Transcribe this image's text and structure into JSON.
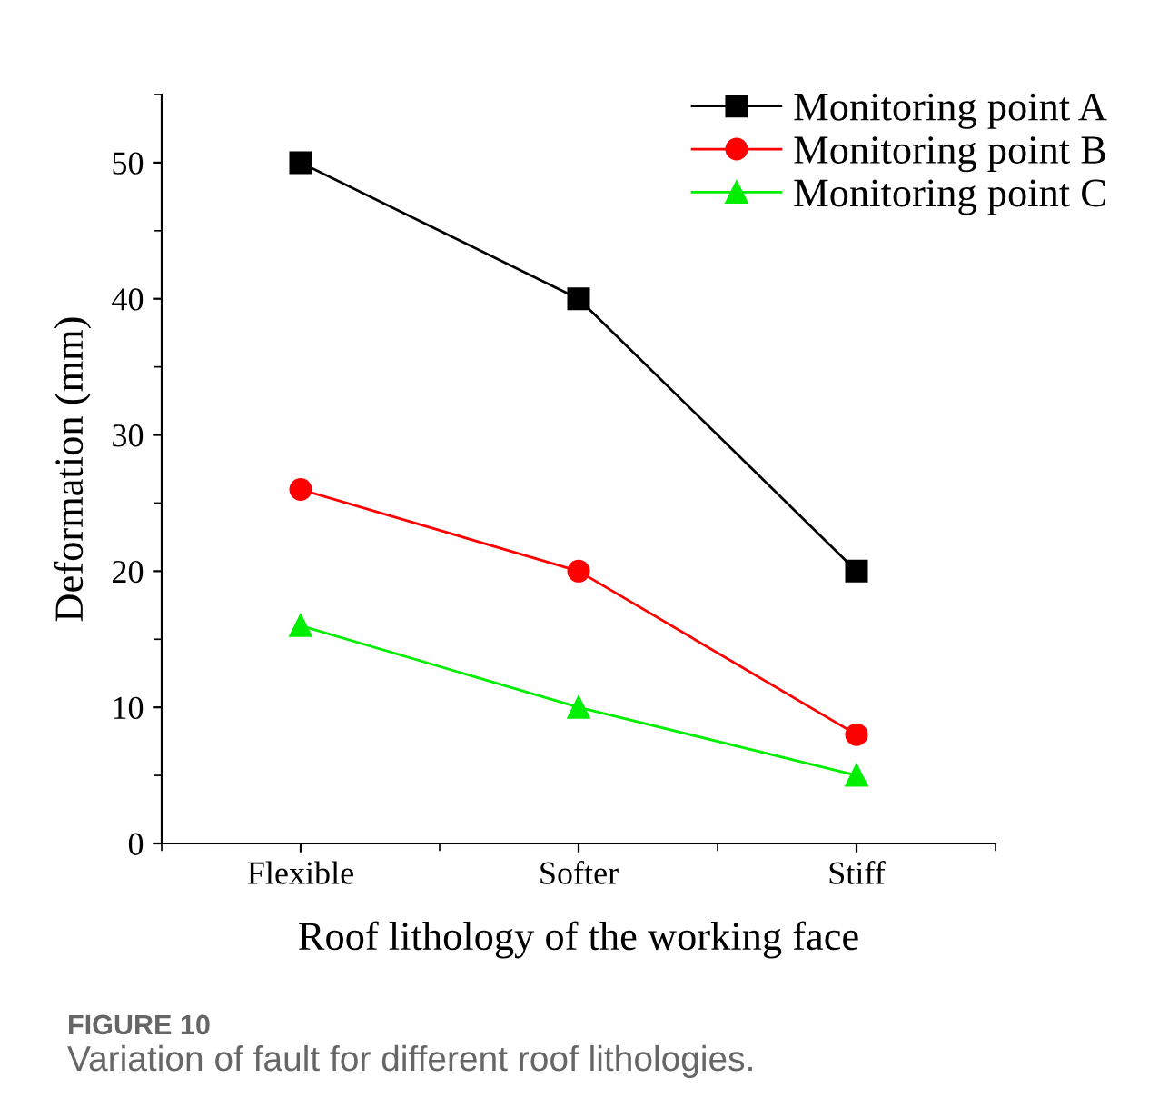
{
  "chart_data": {
    "type": "line",
    "xlabel": "Roof lithology of the working face",
    "ylabel": "Deformation (mm)",
    "categories": [
      "Flexible",
      "Softer",
      "Stiff"
    ],
    "series": [
      {
        "name": "Monitoring point A",
        "color": "#000000",
        "marker": "square",
        "values": [
          50,
          40,
          20
        ]
      },
      {
        "name": "Monitoring point B",
        "color": "#ff0000",
        "marker": "circle",
        "values": [
          26,
          20,
          8
        ]
      },
      {
        "name": "Monitoring point C",
        "color": "#00ee00",
        "marker": "triangle",
        "values": [
          16,
          10,
          5
        ]
      }
    ],
    "ylim": [
      0,
      55
    ],
    "yticks": [
      0,
      10,
      20,
      30,
      40,
      50
    ],
    "grid": false,
    "legend": "top right",
    "line_style": "solid",
    "annotations": [
      "FIGURE 10",
      "Variation of fault for different roof lithologies."
    ]
  }
}
